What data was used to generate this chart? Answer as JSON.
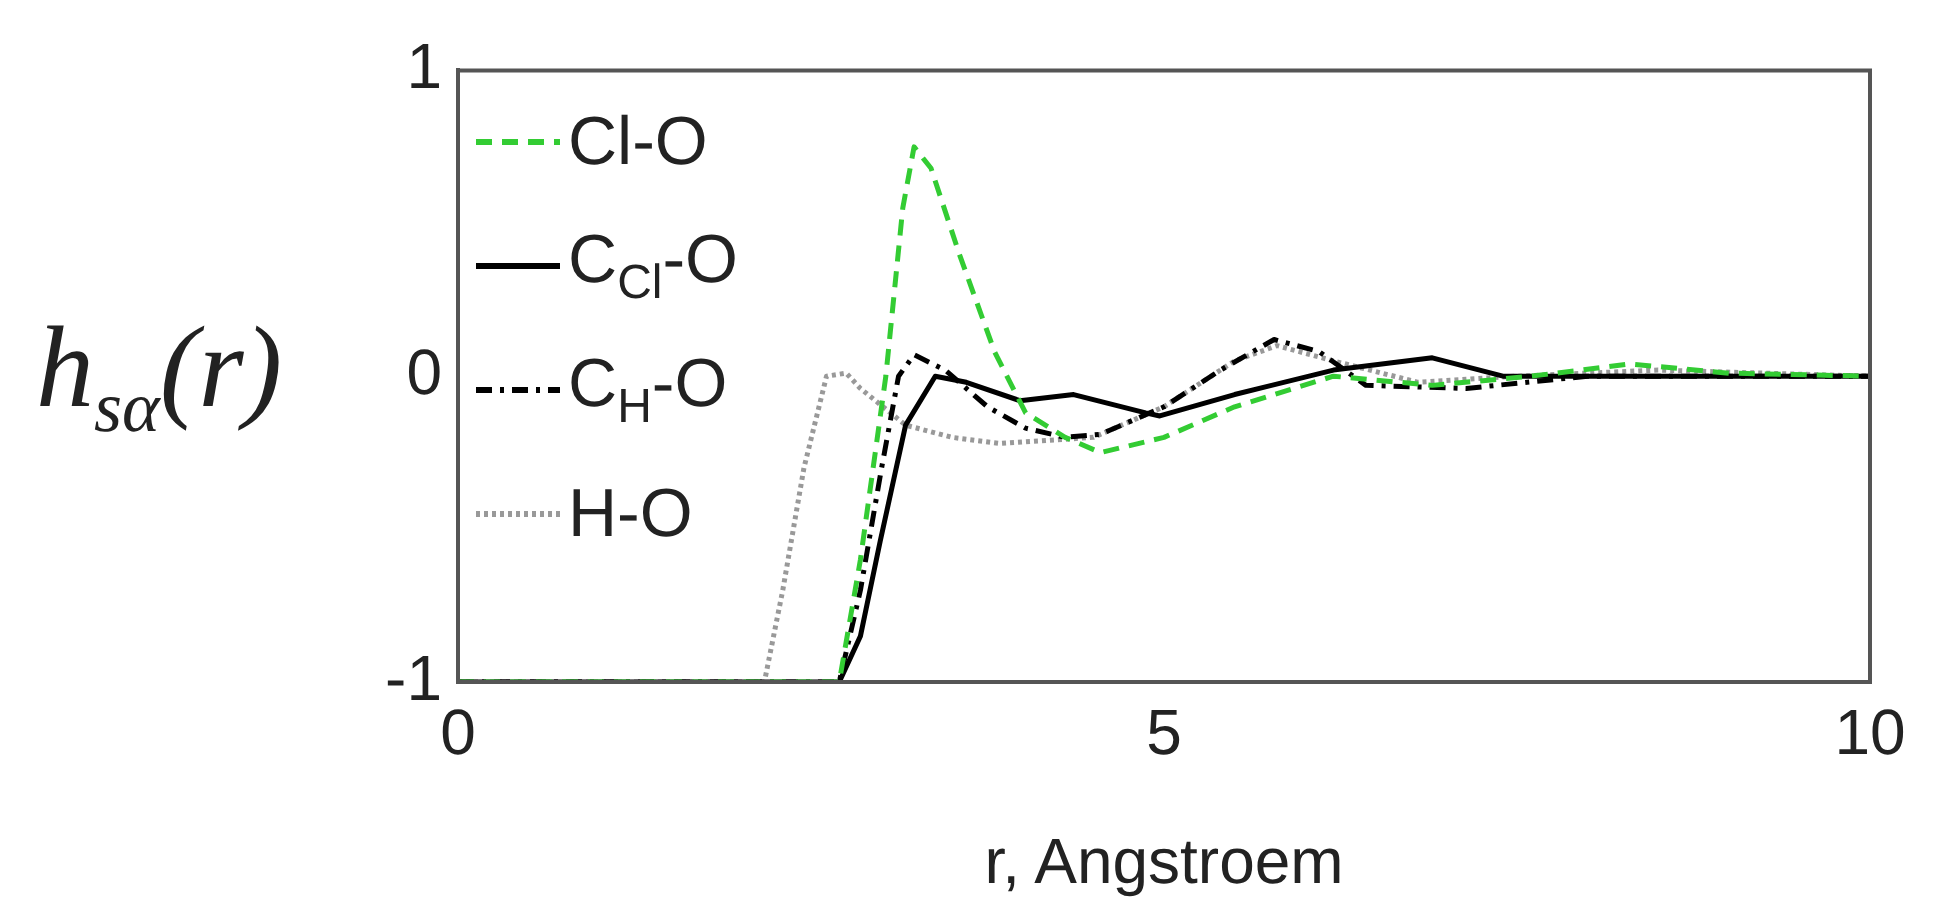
{
  "chart_data": {
    "type": "line",
    "xlabel": "r, Angstroem",
    "ylabel": "h$_{sα}$(r)",
    "xlim": [
      0,
      10
    ],
    "ylim": [
      -1,
      1
    ],
    "xticks": [
      0,
      5,
      10
    ],
    "yticks": [
      -1,
      0,
      1
    ],
    "grid": false,
    "legend": "top left",
    "marker": "none",
    "series": [
      {
        "name": "Cl-O",
        "color": "#33cc33",
        "line_style": "dashed",
        "x": [
          0,
          2.7,
          2.85,
          3.03,
          3.15,
          3.23,
          3.35,
          3.55,
          3.8,
          4.02,
          4.3,
          4.55,
          5.0,
          5.5,
          6.2,
          6.9,
          7.6,
          8.3,
          9.0,
          10
        ],
        "values": [
          -1,
          -1,
          -0.6,
          0,
          0.55,
          0.75,
          0.68,
          0.4,
          0.08,
          -0.12,
          -0.2,
          -0.25,
          -0.2,
          -0.1,
          0,
          -0.03,
          0,
          0.04,
          0.01,
          0
        ]
      },
      {
        "name": "C$_{Cl}$-O",
        "color": "#000000",
        "line_style": "solid",
        "x": [
          0,
          2.7,
          2.85,
          2.99,
          3.17,
          3.38,
          3.6,
          3.98,
          4.36,
          4.87,
          4.97,
          5.5,
          6.2,
          6.9,
          7.4,
          8.0,
          9.0,
          10
        ],
        "values": [
          -1,
          -1,
          -0.85,
          -0.54,
          -0.16,
          0,
          -0.02,
          -0.08,
          -0.06,
          -0.12,
          -0.13,
          -0.06,
          0.02,
          0.06,
          0,
          0,
          0,
          0
        ]
      },
      {
        "name": "C$_{H}$-O",
        "color": "#000000",
        "line_style": "dashdot",
        "x": [
          0,
          2.7,
          2.85,
          3.0,
          3.12,
          3.23,
          3.45,
          3.75,
          4.02,
          4.3,
          4.55,
          5.0,
          5.4,
          5.78,
          6.1,
          6.43,
          7.14,
          8.0,
          9.0,
          10
        ],
        "values": [
          -1,
          -1,
          -0.7,
          -0.3,
          0,
          0.07,
          0.02,
          -0.1,
          -0.17,
          -0.2,
          -0.19,
          -0.1,
          0.02,
          0.12,
          0.08,
          -0.03,
          -0.04,
          0,
          0,
          0
        ]
      },
      {
        "name": "H-O",
        "color": "#999999",
        "line_style": "dotted",
        "x": [
          0,
          2.17,
          2.3,
          2.45,
          2.61,
          2.75,
          2.85,
          3.17,
          3.5,
          3.84,
          4.5,
          5.0,
          5.5,
          5.8,
          6.2,
          6.8,
          7.5,
          8.5,
          10
        ],
        "values": [
          -1,
          -1,
          -0.7,
          -0.3,
          0,
          0.01,
          -0.04,
          -0.16,
          -0.2,
          -0.22,
          -0.2,
          -0.1,
          0.05,
          0.1,
          0.05,
          -0.02,
          0,
          0.02,
          0
        ]
      }
    ]
  }
}
